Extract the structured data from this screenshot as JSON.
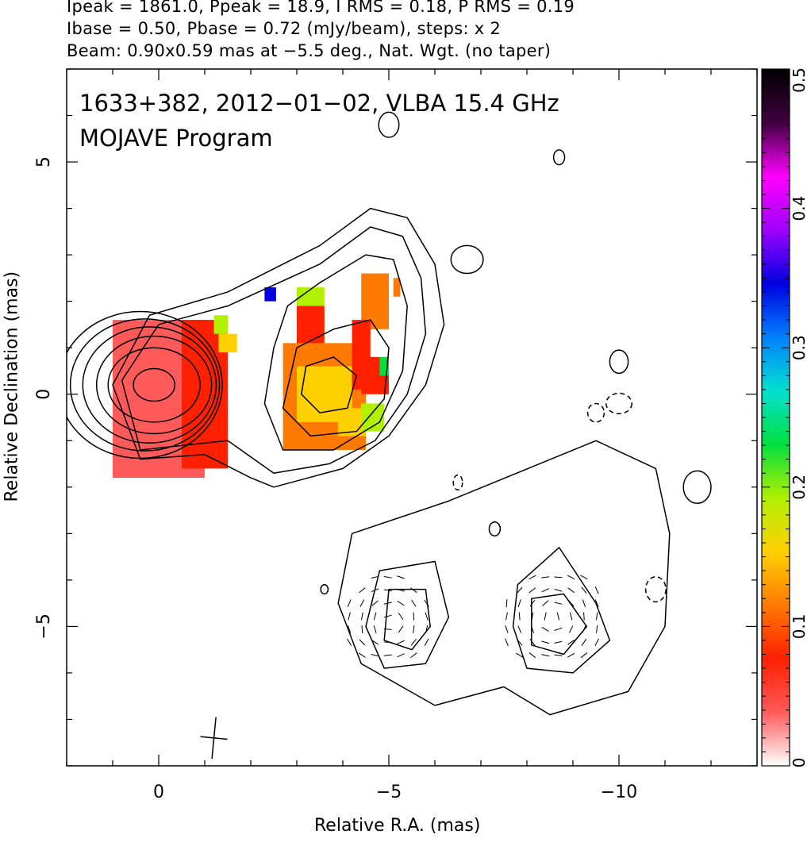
{
  "header": {
    "line1": "Ipeak = 1861.0, Ppeak = 18.9, I RMS = 0.18, P RMS = 0.19",
    "line2": "Ibase = 0.50, Pbase = 0.72 (mJy/beam), steps: x 2",
    "line3": "Beam: 0.90x0.59 mas at −5.5 deg., Nat. Wgt. (no taper)"
  },
  "chart_data": {
    "type": "heatmap",
    "title": "1633+382, 2012−01−02, VLBA 15.4 GHz",
    "subtitle": "MOJAVE Program",
    "xlabel": "Relative R.A. (mas)",
    "ylabel": "Relative Declination (mas)",
    "xlim": [
      2.0,
      -13.0
    ],
    "ylim": [
      -8.0,
      7.0
    ],
    "x_ticks": [
      0,
      -5,
      -10
    ],
    "x_tick_labels": [
      "0",
      "−5",
      "−10"
    ],
    "y_ticks": [
      5,
      0,
      -5
    ],
    "y_tick_labels": [
      "5",
      "0",
      "−5"
    ],
    "colorbar": {
      "range": [
        0,
        0.5
      ],
      "ticks": [
        0,
        0.1,
        0.2,
        0.3,
        0.4,
        0.5
      ],
      "tick_labels": [
        "0",
        "0.1",
        "0.2",
        "0.3",
        "0.4",
        "0.5"
      ],
      "colors": [
        "#ffffff",
        "#ff5a5a",
        "#ff2000",
        "#ff7a00",
        "#ffd000",
        "#b0f000",
        "#00e040",
        "#00e0d0",
        "#0080ff",
        "#0000e0",
        "#a000ff",
        "#ff00ff",
        "#400040",
        "#000000"
      ]
    },
    "core_ellipses": [
      {
        "cx": 0.1,
        "cy": 0.2,
        "rx": 1.0,
        "ry": 0.8,
        "level": 1
      },
      {
        "cx": 0.1,
        "cy": 0.2,
        "rx": 1.25,
        "ry": 1.05,
        "level": 2
      },
      {
        "cx": 0.2,
        "cy": 0.2,
        "rx": 1.45,
        "ry": 1.25,
        "level": 3
      },
      {
        "cx": 0.3,
        "cy": 0.2,
        "rx": 1.62,
        "ry": 1.42,
        "level": 4
      },
      {
        "cx": 0.4,
        "cy": 0.2,
        "rx": 1.78,
        "ry": 1.58,
        "level": 5
      },
      {
        "cx": 0.1,
        "cy": 0.2,
        "rx": 0.45,
        "ry": 0.35,
        "level": 6
      }
    ],
    "jet_contours": [
      [
        [
          1.0,
          0.2
        ],
        [
          0.2,
          1.7
        ],
        [
          -1.5,
          2.2
        ],
        [
          -3.5,
          3.2
        ],
        [
          -4.6,
          4.0
        ],
        [
          -5.4,
          3.8
        ],
        [
          -6.0,
          2.8
        ],
        [
          -6.2,
          1.5
        ],
        [
          -5.8,
          0.2
        ],
        [
          -5.0,
          -0.9
        ],
        [
          -4.0,
          -1.6
        ],
        [
          -2.5,
          -2.0
        ],
        [
          -2.0,
          -1.8
        ],
        [
          -1.0,
          -1.3
        ],
        [
          0.4,
          -1.4
        ],
        [
          1.0,
          0.2
        ]
      ],
      [
        [
          0.8,
          0.3
        ],
        [
          0.0,
          1.5
        ],
        [
          -1.5,
          1.9
        ],
        [
          -3.5,
          2.8
        ],
        [
          -4.6,
          3.6
        ],
        [
          -5.3,
          3.4
        ],
        [
          -5.7,
          2.5
        ],
        [
          -5.8,
          1.3
        ],
        [
          -5.4,
          0.0
        ],
        [
          -4.7,
          -1.0
        ],
        [
          -3.7,
          -1.5
        ],
        [
          -2.5,
          -1.7
        ],
        [
          -1.5,
          -1.0
        ],
        [
          0.4,
          -1.2
        ],
        [
          0.8,
          0.3
        ]
      ],
      [
        [
          -2.8,
          1.9
        ],
        [
          -3.5,
          2.4
        ],
        [
          -4.5,
          3.0
        ],
        [
          -5.1,
          2.9
        ],
        [
          -5.4,
          1.9
        ],
        [
          -5.3,
          0.5
        ],
        [
          -4.8,
          -0.6
        ],
        [
          -3.8,
          -1.2
        ],
        [
          -2.7,
          -1.2
        ],
        [
          -2.3,
          -0.2
        ],
        [
          -2.5,
          1.0
        ],
        [
          -2.8,
          1.9
        ]
      ],
      [
        [
          -3.0,
          1.0
        ],
        [
          -3.8,
          1.4
        ],
        [
          -4.6,
          1.6
        ],
        [
          -5.0,
          1.0
        ],
        [
          -4.9,
          -0.1
        ],
        [
          -4.3,
          -0.8
        ],
        [
          -3.3,
          -0.9
        ],
        [
          -2.7,
          -0.3
        ],
        [
          -3.0,
          1.0
        ]
      ],
      [
        [
          -3.2,
          0.6
        ],
        [
          -3.8,
          0.8
        ],
        [
          -4.3,
          0.4
        ],
        [
          -4.1,
          -0.3
        ],
        [
          -3.5,
          -0.4
        ],
        [
          -3.1,
          0.0
        ],
        [
          -3.2,
          0.6
        ]
      ],
      [
        [
          -4.2,
          -3.0
        ],
        [
          -6.3,
          -2.3
        ],
        [
          -9.5,
          -1.0
        ],
        [
          -10.8,
          -1.6
        ],
        [
          -11.1,
          -3.0
        ],
        [
          -11.0,
          -5.0
        ],
        [
          -10.2,
          -6.4
        ],
        [
          -8.5,
          -6.9
        ],
        [
          -7.5,
          -6.3
        ],
        [
          -6.0,
          -6.7
        ],
        [
          -4.4,
          -5.8
        ],
        [
          -3.9,
          -4.5
        ],
        [
          -4.2,
          -3.0
        ]
      ],
      [
        [
          -4.8,
          -3.8
        ],
        [
          -6.0,
          -3.6
        ],
        [
          -6.3,
          -4.8
        ],
        [
          -5.8,
          -5.8
        ],
        [
          -4.9,
          -5.9
        ],
        [
          -4.5,
          -5.0
        ],
        [
          -4.8,
          -3.8
        ]
      ],
      [
        [
          -5.0,
          -4.2
        ],
        [
          -5.8,
          -4.2
        ],
        [
          -5.9,
          -5.0
        ],
        [
          -5.5,
          -5.5
        ],
        [
          -4.9,
          -5.3
        ],
        [
          -5.0,
          -4.2
        ]
      ],
      [
        [
          -7.8,
          -4.1
        ],
        [
          -8.7,
          -3.3
        ],
        [
          -9.5,
          -4.5
        ],
        [
          -9.8,
          -5.3
        ],
        [
          -9.0,
          -6.0
        ],
        [
          -8.0,
          -5.9
        ],
        [
          -7.7,
          -5.0
        ],
        [
          -7.8,
          -4.1
        ]
      ],
      [
        [
          -8.1,
          -4.4
        ],
        [
          -8.8,
          -4.3
        ],
        [
          -9.3,
          -5.0
        ],
        [
          -8.8,
          -5.6
        ],
        [
          -8.1,
          -5.4
        ],
        [
          -8.1,
          -4.4
        ]
      ]
    ],
    "small_contours": [
      {
        "cx": -5.0,
        "cy": 5.8,
        "rx": 0.22,
        "ry": 0.27,
        "dashed": false
      },
      {
        "cx": -8.7,
        "cy": 5.1,
        "rx": 0.12,
        "ry": 0.16,
        "dashed": false
      },
      {
        "cx": -6.7,
        "cy": 2.9,
        "rx": 0.35,
        "ry": 0.3,
        "dashed": false
      },
      {
        "cx": -10.0,
        "cy": 0.7,
        "rx": 0.2,
        "ry": 0.25,
        "dashed": false
      },
      {
        "cx": -9.5,
        "cy": -0.4,
        "rx": 0.18,
        "ry": 0.2,
        "dashed": true
      },
      {
        "cx": -10.0,
        "cy": -0.2,
        "rx": 0.28,
        "ry": 0.22,
        "dashed": true
      },
      {
        "cx": -11.7,
        "cy": -2.0,
        "rx": 0.3,
        "ry": 0.35,
        "dashed": false
      },
      {
        "cx": -6.5,
        "cy": -1.9,
        "rx": 0.1,
        "ry": 0.16,
        "dashed": true
      },
      {
        "cx": -7.3,
        "cy": -2.9,
        "rx": 0.12,
        "ry": 0.15,
        "dashed": false
      },
      {
        "cx": -3.6,
        "cy": -4.2,
        "rx": 0.08,
        "ry": 0.1,
        "dashed": false
      },
      {
        "cx": -10.8,
        "cy": -4.2,
        "rx": 0.22,
        "ry": 0.27,
        "dashed": true
      }
    ],
    "polarization_patches": [
      {
        "x": 1.0,
        "y": 1.6,
        "w": 2.0,
        "h": 3.4,
        "value": 0.05
      },
      {
        "x": -0.5,
        "y": 1.6,
        "w": 1.0,
        "h": 3.2,
        "value": 0.09
      },
      {
        "x": -1.2,
        "y": 1.7,
        "w": 0.3,
        "h": 0.4,
        "value": 0.18
      },
      {
        "x": -1.3,
        "y": 1.3,
        "w": 0.4,
        "h": 0.4,
        "value": 0.15
      },
      {
        "x": -2.3,
        "y": 2.3,
        "w": 0.25,
        "h": 0.3,
        "value": 0.33
      },
      {
        "x": -3.0,
        "y": 2.3,
        "w": 0.6,
        "h": 1.5,
        "value": 0.18
      },
      {
        "x": -3.0,
        "y": 1.9,
        "w": 0.6,
        "h": 1.1,
        "value": 0.09
      },
      {
        "x": -2.7,
        "y": 1.1,
        "w": 1.8,
        "h": 2.3,
        "value": 0.12
      },
      {
        "x": -3.0,
        "y": 0.6,
        "w": 1.2,
        "h": 1.2,
        "value": 0.15
      },
      {
        "x": -4.4,
        "y": 2.6,
        "w": 0.6,
        "h": 1.2,
        "value": 0.13
      },
      {
        "x": -4.2,
        "y": 1.6,
        "w": 0.4,
        "h": 1.5,
        "value": 0.09
      },
      {
        "x": -4.4,
        "y": 0.8,
        "w": 0.6,
        "h": 0.8,
        "value": 0.09
      },
      {
        "x": -3.9,
        "y": -0.3,
        "w": 0.6,
        "h": 0.6,
        "value": 0.16
      },
      {
        "x": -4.4,
        "y": -0.2,
        "w": 0.5,
        "h": 0.6,
        "value": 0.2
      },
      {
        "x": -4.8,
        "y": 0.8,
        "w": 0.2,
        "h": 0.4,
        "value": 0.22
      },
      {
        "x": -5.1,
        "y": 2.5,
        "w": 0.15,
        "h": 0.4,
        "value": 0.1
      }
    ],
    "ticks_vectors_regions": [
      {
        "cx": -5.0,
        "cy": -4.9,
        "rx": 1.1,
        "ry": 1.0
      },
      {
        "cx": -8.6,
        "cy": -4.8,
        "rx": 1.2,
        "ry": 1.1
      }
    ],
    "beam": {
      "x": -1.2,
      "y": -7.4,
      "major": 0.9,
      "minor": 0.59,
      "pa": -5.5
    }
  }
}
